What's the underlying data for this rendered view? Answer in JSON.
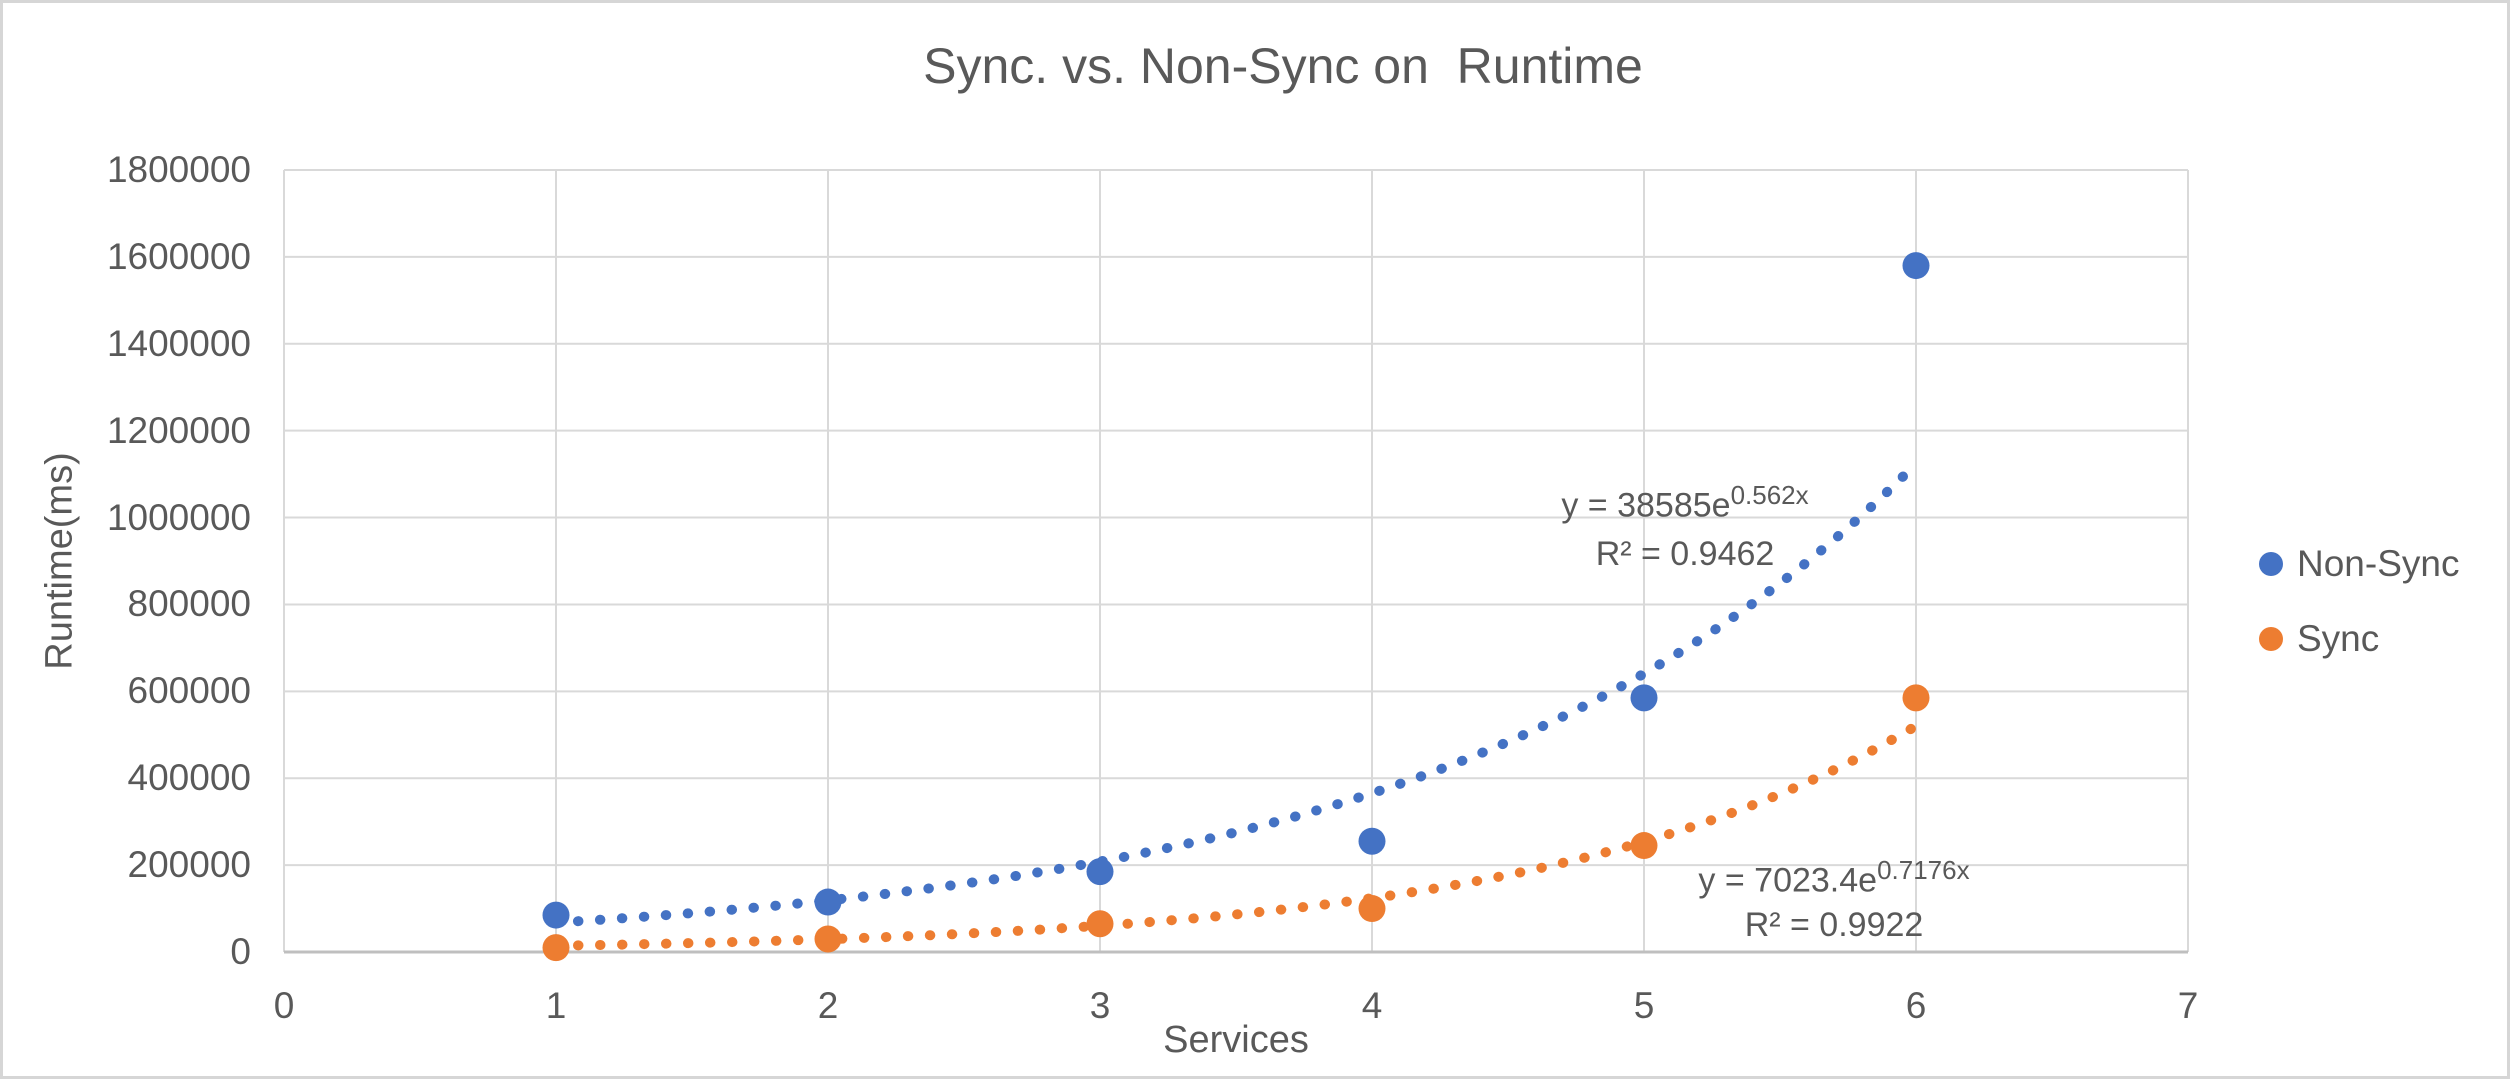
{
  "colors": {
    "background": "#FFFFFF",
    "border": "#D6D6D6",
    "text": "#595959",
    "grid": "#D9D9D9",
    "axis": "#BFBFBF",
    "non_sync": "#4472C4",
    "sync": "#ED7D31"
  },
  "chart_data": {
    "type": "scatter",
    "title": "Sync. vs. Non-Sync on  Runtime",
    "xlabel": "Services",
    "ylabel": "Runtime(ms)",
    "xlim": [
      0,
      7
    ],
    "ylim": [
      0,
      1800000
    ],
    "x_ticks": [
      "0",
      "1",
      "2",
      "3",
      "4",
      "5",
      "6",
      "7"
    ],
    "y_ticks": [
      "0",
      "200000",
      "400000",
      "600000",
      "800000",
      "1000000",
      "1200000",
      "1400000",
      "1600000",
      "1800000"
    ],
    "grid": true,
    "legend_position": "right",
    "marker": "circle",
    "series": [
      {
        "name": "Non-Sync",
        "color": "#4472C4",
        "points": [
          {
            "x": 1,
            "y": 85000
          },
          {
            "x": 2,
            "y": 115000
          },
          {
            "x": 3,
            "y": 185000
          },
          {
            "x": 4,
            "y": 255000
          },
          {
            "x": 5,
            "y": 585000
          },
          {
            "x": 6,
            "y": 1580000
          }
        ],
        "trendline": {
          "type": "exponential",
          "style": "dotted",
          "a": 38585,
          "b": 0.562,
          "x_start": 1,
          "x_end": 6,
          "eq_prefix": "y = 38585e",
          "eq_exponent": "0.562x",
          "r2": "R² = 0.9462"
        }
      },
      {
        "name": "Sync",
        "color": "#ED7D31",
        "points": [
          {
            "x": 1,
            "y": 10000
          },
          {
            "x": 2,
            "y": 30000
          },
          {
            "x": 3,
            "y": 65000
          },
          {
            "x": 4,
            "y": 100000
          },
          {
            "x": 5,
            "y": 245000
          },
          {
            "x": 6,
            "y": 585000
          }
        ],
        "trendline": {
          "type": "exponential",
          "style": "dotted",
          "a": 7023.4,
          "b": 0.7176,
          "x_start": 1,
          "x_end": 6,
          "eq_prefix": "y = 7023.4e",
          "eq_exponent": "0.7176x",
          "r2": "R² = 0.9922"
        }
      }
    ]
  }
}
